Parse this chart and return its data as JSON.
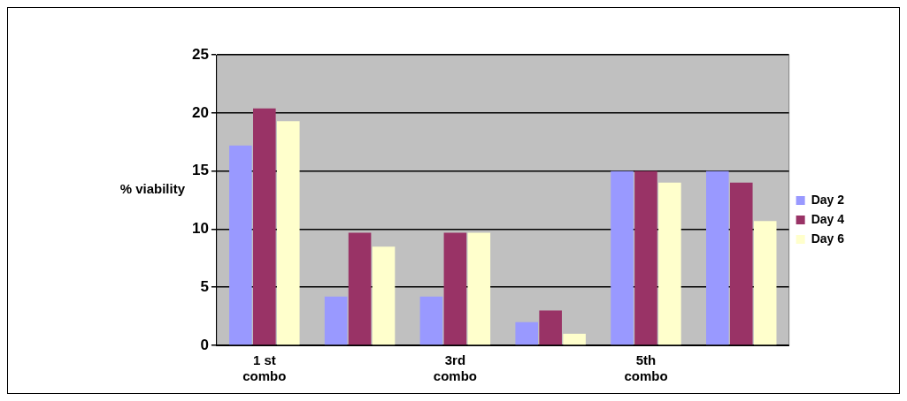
{
  "chart_data": {
    "type": "bar",
    "ylabel": "% viability",
    "categories": [
      "1 st combo",
      null,
      "3rd combo",
      null,
      "5th combo",
      null
    ],
    "series": [
      {
        "name": "Day 2",
        "color": "#9999ff",
        "values": [
          17.2,
          4.2,
          4.2,
          2,
          15,
          15
        ]
      },
      {
        "name": "Day 4",
        "color": "#993366",
        "values": [
          20.4,
          9.7,
          9.7,
          3,
          15,
          14
        ]
      },
      {
        "name": "Day 6",
        "color": "#ffffcc",
        "values": [
          19.3,
          8.5,
          9.7,
          1,
          14,
          10.7
        ]
      }
    ],
    "ylim": [
      0,
      25
    ],
    "yticks": [
      0,
      5,
      10,
      15,
      20,
      25
    ],
    "grid": "y",
    "legend": "right"
  }
}
